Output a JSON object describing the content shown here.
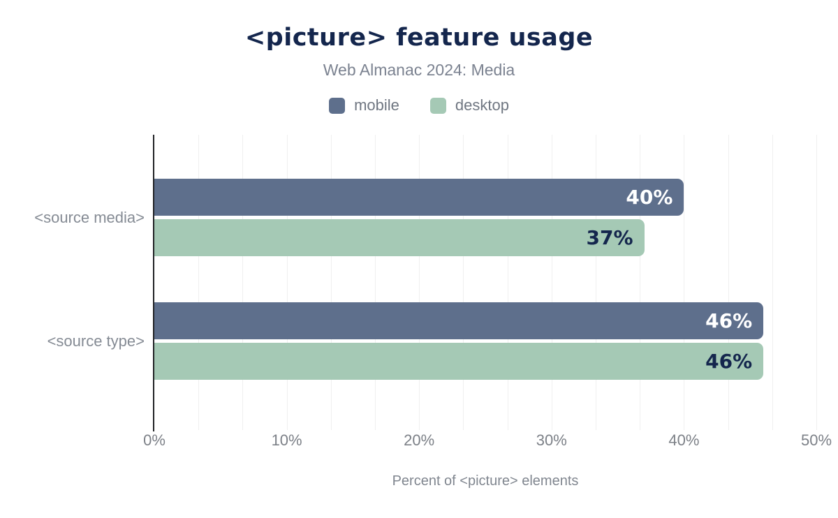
{
  "chart_data": {
    "type": "bar",
    "orientation": "horizontal",
    "title": "<picture> feature usage",
    "subtitle": "Web Almanac 2024: Media",
    "categories": [
      "<source media>",
      "<source type>"
    ],
    "series": [
      {
        "name": "mobile",
        "color": "#5e6f8c",
        "label_color": "#ffffff",
        "values": [
          40,
          46
        ],
        "labels": [
          "40%",
          "46%"
        ]
      },
      {
        "name": "desktop",
        "color": "#a5c9b5",
        "label_color": "#14264d",
        "values": [
          37,
          46
        ],
        "labels": [
          "37%",
          "46%"
        ]
      }
    ],
    "xlabel": "Percent of <picture> elements",
    "x_ticks": [
      "0%",
      "10%",
      "20%",
      "30%",
      "40%",
      "50%"
    ],
    "xlim": [
      0,
      50
    ],
    "grid": {
      "vertical": true,
      "minor_divisions_per_major": 3,
      "color": "#efefef"
    },
    "legend_position": "top",
    "title_color": "#14264d",
    "axis_color": "#202124"
  }
}
